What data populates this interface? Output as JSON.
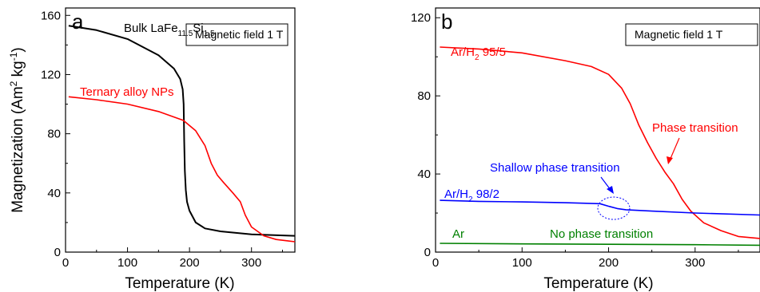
{
  "chart_data": [
    {
      "panel": "a",
      "type": "line",
      "xlabel": "Temperature (K)",
      "ylabel": "Magnetization (Am² kg⁻¹)",
      "ylabel_parts": {
        "base": "Magnetization (Am",
        "sup1": "2",
        "mid": " kg",
        "sup2": "-1",
        "end": ")"
      },
      "xlim": [
        0,
        370
      ],
      "ylim": [
        0,
        165
      ],
      "xticks": [
        0,
        100,
        200,
        300
      ],
      "yticks": [
        0,
        40,
        80,
        120,
        160
      ],
      "field_label": "Magnetic field 1 T",
      "series": [
        {
          "name": "Bulk LaFe11.5Si1.5",
          "color": "#000000",
          "x": [
            5,
            50,
            100,
            150,
            175,
            185,
            189,
            190.5,
            191.5,
            192.5,
            194,
            196,
            200,
            210,
            225,
            250,
            300,
            370
          ],
          "y": [
            153,
            150,
            144,
            133,
            124,
            117,
            110,
            100,
            75,
            55,
            42,
            34,
            28,
            20,
            16,
            14,
            12,
            11
          ]
        },
        {
          "name": "Ternary alloy NPs",
          "color": "#ff0000",
          "x": [
            5,
            50,
            100,
            150,
            190,
            210,
            225,
            235,
            245,
            255,
            270,
            282,
            290,
            300,
            320,
            340,
            360,
            370
          ],
          "y": [
            105,
            103,
            100,
            95,
            89,
            82,
            72,
            60,
            52,
            47,
            40,
            34,
            25,
            17,
            11,
            8.5,
            7.5,
            7
          ]
        }
      ],
      "annotations": [
        {
          "text": "Ternary alloy NPs",
          "color": "#ff0000"
        }
      ],
      "bulk_label": {
        "base": "Bulk LaFe",
        "sub1": "11.5",
        "mid": "Si",
        "sub2": "1.5"
      },
      "grid": false
    },
    {
      "panel": "b",
      "type": "line",
      "xlabel": "Temperature (K)",
      "ylabel": "",
      "xlim": [
        0,
        375
      ],
      "ylim": [
        0,
        125
      ],
      "xticks": [
        0,
        100,
        200,
        300
      ],
      "yticks": [
        0,
        40,
        80,
        120
      ],
      "field_label": "Magnetic field 1 T",
      "series": [
        {
          "name": "Ar/H2 95/5",
          "color": "#ff0000",
          "x": [
            5,
            50,
            100,
            150,
            180,
            200,
            215,
            225,
            235,
            245,
            255,
            265,
            275,
            285,
            295,
            310,
            330,
            350,
            375
          ],
          "y": [
            105,
            104,
            102,
            98,
            95,
            91,
            84,
            76,
            65,
            56,
            48,
            41,
            35,
            27,
            21,
            15,
            11,
            8,
            7
          ]
        },
        {
          "name": "Ar/H2 98/2",
          "color": "#0000ff",
          "x": [
            5,
            50,
            100,
            150,
            190,
            200,
            210,
            220,
            250,
            300,
            375
          ],
          "y": [
            26.5,
            26,
            25.7,
            25.3,
            24.8,
            23.5,
            22.3,
            21.7,
            21,
            20,
            19
          ]
        },
        {
          "name": "Ar",
          "color": "#008000",
          "x": [
            5,
            100,
            200,
            300,
            375
          ],
          "y": [
            4.5,
            4.2,
            4,
            3.8,
            3.5
          ]
        }
      ],
      "annotations": [
        {
          "text": "Phase transition",
          "color": "#ff0000"
        },
        {
          "text": "Shallow phase transition",
          "color": "#0000ff"
        },
        {
          "text": "No phase transition",
          "color": "#008000"
        }
      ],
      "label_95": {
        "base": "Ar/H",
        "sub": "2",
        "end": " 95/5"
      },
      "label_98": {
        "base": "Ar/H",
        "sub": "2",
        "end": " 98/2"
      },
      "label_ar": "Ar",
      "grid": false
    }
  ]
}
